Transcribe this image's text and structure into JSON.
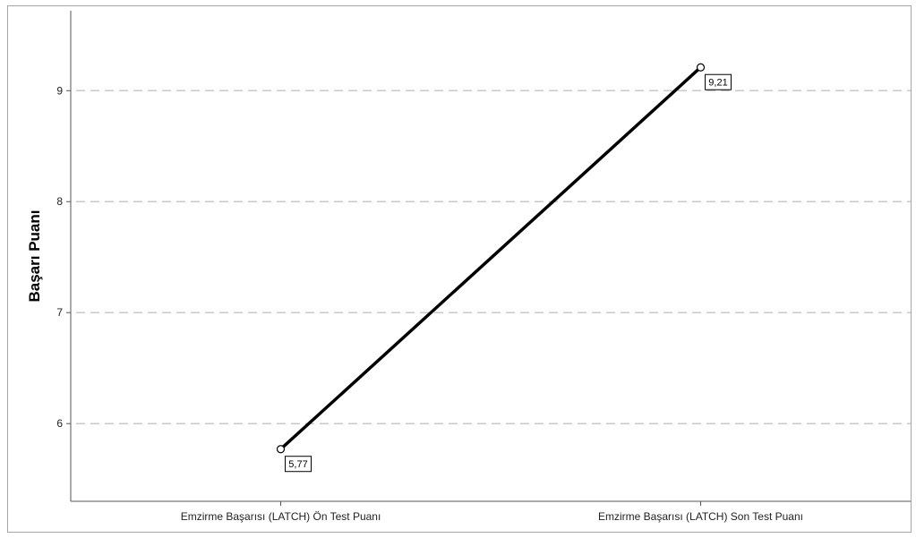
{
  "chart_data": {
    "type": "line",
    "categories": [
      "Emzirme Başarısı (LATCH) Ön Test Puanı",
      "Emzirme Başarısı (LATCH) Son Test Puanı"
    ],
    "series": [
      {
        "values": [
          5.77,
          9.21
        ],
        "data_labels": [
          "5,77",
          "9,21"
        ]
      }
    ],
    "ylabel": "Başarı Puanı",
    "xlabel": "",
    "ylim": [
      5.3,
      9.72
    ],
    "yticks": [
      6,
      7,
      8,
      9
    ],
    "ytick_labels": [
      "6",
      "7",
      "8",
      "9"
    ],
    "grid": "horizontal dashed",
    "colors": {
      "line": "#000000",
      "grid": "#c8c8c8",
      "axis": "#555555"
    }
  }
}
